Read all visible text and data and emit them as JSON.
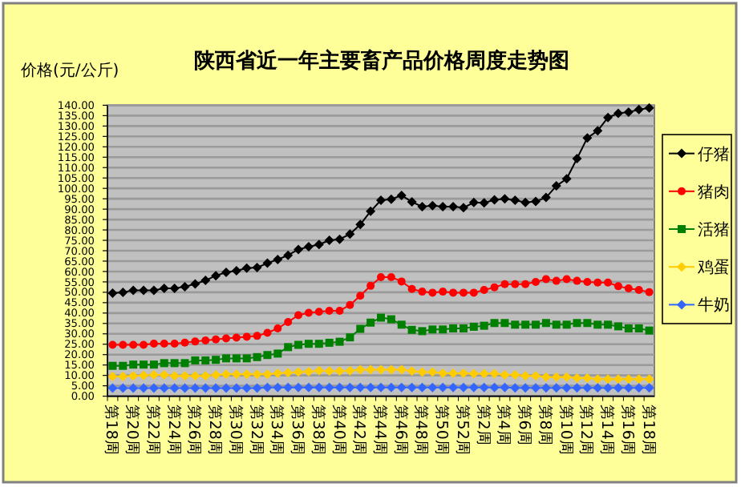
{
  "chart_data": {
    "type": "line",
    "title": "陕西省近一年主要畜产品价格周度走势图",
    "ylabel": "价格(元/公斤)",
    "categories": [
      "第18周",
      null,
      "第20周",
      null,
      "第22周",
      null,
      "第24周",
      null,
      "第26周",
      null,
      "第28周",
      null,
      "第30周",
      null,
      "第32周",
      null,
      "第34周",
      null,
      "第36周",
      null,
      "第38周",
      null,
      "第40周",
      null,
      "第42周",
      null,
      "第44周",
      null,
      "第46周",
      null,
      "第48周",
      null,
      "第50周",
      null,
      "第52周",
      null,
      "第2周",
      null,
      "第4周",
      null,
      "第6周",
      null,
      "第8周",
      null,
      "第10周",
      null,
      "第12周",
      null,
      "第14周",
      null,
      "第16周",
      null,
      "第18周"
    ],
    "series": [
      {
        "name": "仔猪",
        "color": "#000000",
        "marker": "diamond",
        "values": [
          49.6,
          50,
          50.9,
          50.9,
          50.9,
          51.9,
          51.9,
          52.7,
          54,
          55.7,
          58,
          59.6,
          60.4,
          61.6,
          61.9,
          64,
          65.8,
          67.8,
          70.6,
          71.9,
          73,
          75,
          75.5,
          78,
          82.6,
          89,
          94.3,
          94.8,
          96.6,
          93.5,
          91.2,
          91.7,
          91.2,
          91.2,
          90.7,
          93.2,
          93,
          94.5,
          95,
          94.3,
          93.2,
          93.7,
          95.6,
          101.2,
          104.6,
          114.3,
          124.3,
          127.7,
          134.1,
          136.1,
          136.7,
          137.9,
          138.7
        ]
      },
      {
        "name": "猪肉",
        "color": "#ff0000",
        "marker": "circle",
        "values": [
          24.7,
          24.7,
          24.7,
          24.7,
          25.3,
          25.3,
          25.3,
          25.8,
          26.3,
          26.8,
          27.3,
          27.8,
          28.2,
          28.6,
          29,
          30.5,
          32.6,
          35.7,
          39,
          40.1,
          40.6,
          41.1,
          41.1,
          43.9,
          48.3,
          53.1,
          57.3,
          57.3,
          55.2,
          51.6,
          50.3,
          49.8,
          50.3,
          49.8,
          49.8,
          49.8,
          51.1,
          52.4,
          53.9,
          53.9,
          53.9,
          55,
          56.3,
          55.5,
          56.3,
          55.5,
          55,
          54.7,
          54.7,
          52.9,
          51.9,
          51.1,
          50.1
        ]
      },
      {
        "name": "活猪",
        "color": "#008000",
        "marker": "square",
        "values": [
          14.6,
          14.6,
          15.2,
          15.2,
          15.2,
          15.9,
          15.9,
          15.9,
          17.2,
          17.2,
          17.5,
          18.2,
          18.2,
          18.2,
          18.8,
          19.8,
          20.5,
          23.6,
          24.7,
          25.2,
          25.2,
          25.7,
          26.2,
          28.3,
          32.4,
          35.4,
          37.8,
          37,
          34.4,
          31.9,
          31.3,
          32.1,
          32.1,
          32.6,
          32.6,
          33.4,
          33.9,
          35.2,
          35.2,
          34.4,
          34.4,
          34.4,
          35.2,
          34.4,
          34.4,
          35.2,
          35.2,
          34.4,
          34.4,
          33.6,
          32.6,
          32.6,
          31.6
        ]
      },
      {
        "name": "鸡蛋",
        "color": "#ffcc00",
        "marker": "diamond",
        "values": [
          9.5,
          9.5,
          9.8,
          10,
          10.3,
          10.3,
          9.8,
          9.8,
          9.8,
          9.8,
          10.3,
          10.5,
          10.5,
          10.5,
          10.5,
          10.5,
          11,
          11.3,
          11.6,
          11.8,
          12.3,
          12.1,
          12.1,
          12.3,
          12.8,
          12.8,
          12.8,
          12.8,
          12.8,
          12.1,
          11.6,
          11.6,
          11,
          11,
          11,
          10.8,
          10.8,
          10.8,
          10.3,
          10.3,
          9.8,
          9.8,
          9.2,
          9.2,
          9.2,
          8.7,
          8.7,
          8.2,
          8.2,
          8.2,
          8.2,
          8.2,
          8.2
        ]
      },
      {
        "name": "牛奶",
        "color": "#3366ff",
        "marker": "diamond",
        "values": [
          3.9,
          3.9,
          3.9,
          3.9,
          3.9,
          3.9,
          3.9,
          3.9,
          3.9,
          3.9,
          3.9,
          3.9,
          3.9,
          3.9,
          3.9,
          4.2,
          4.2,
          4.2,
          4.2,
          4.2,
          4.2,
          4.2,
          4.2,
          4.2,
          4.2,
          4.2,
          4.2,
          4.2,
          4.2,
          4.2,
          4.2,
          4.2,
          4.2,
          4.2,
          4.2,
          4.2,
          4.2,
          4.2,
          4.2,
          4,
          4,
          4,
          4,
          4,
          4,
          4,
          4,
          4,
          4,
          4,
          4,
          4,
          4
        ]
      }
    ],
    "ylim": [
      0,
      140
    ],
    "yticks": [
      {
        "value": 0,
        "label": "0.00"
      },
      {
        "value": 5,
        "label": "5.00"
      },
      {
        "value": 10,
        "label": "10.00"
      },
      {
        "value": 15,
        "label": "15.00"
      },
      {
        "value": 20,
        "label": "20.00"
      },
      {
        "value": 25,
        "label": "25.00"
      },
      {
        "value": 30,
        "label": "30.00"
      },
      {
        "value": 35,
        "label": "35.00"
      },
      {
        "value": 40,
        "label": "40.00"
      },
      {
        "value": 45,
        "label": "45.00"
      },
      {
        "value": 50,
        "label": "50.00"
      },
      {
        "value": 55,
        "label": "55.00"
      },
      {
        "value": 60,
        "label": "60.00"
      },
      {
        "value": 65,
        "label": "65.00"
      },
      {
        "value": 70,
        "label": "70.00"
      },
      {
        "value": 75,
        "label": "75.00"
      },
      {
        "value": 80,
        "label": "80.00"
      },
      {
        "value": 85,
        "label": "85.00"
      },
      {
        "value": 90,
        "label": "90.00"
      },
      {
        "value": 95,
        "label": "95.00"
      },
      {
        "value": 100,
        "label": "100.00"
      },
      {
        "value": 105,
        "label": "105.00"
      },
      {
        "value": 110,
        "label": "110.00"
      },
      {
        "value": 115,
        "label": "115.00"
      },
      {
        "value": 120,
        "label": "120.00"
      },
      {
        "value": 125,
        "label": "125.00"
      },
      {
        "value": 130,
        "label": "130.00"
      },
      {
        "value": 135,
        "label": "135.00"
      },
      {
        "value": 140,
        "label": "140.00"
      }
    ],
    "grid": "y",
    "legend": "right"
  }
}
